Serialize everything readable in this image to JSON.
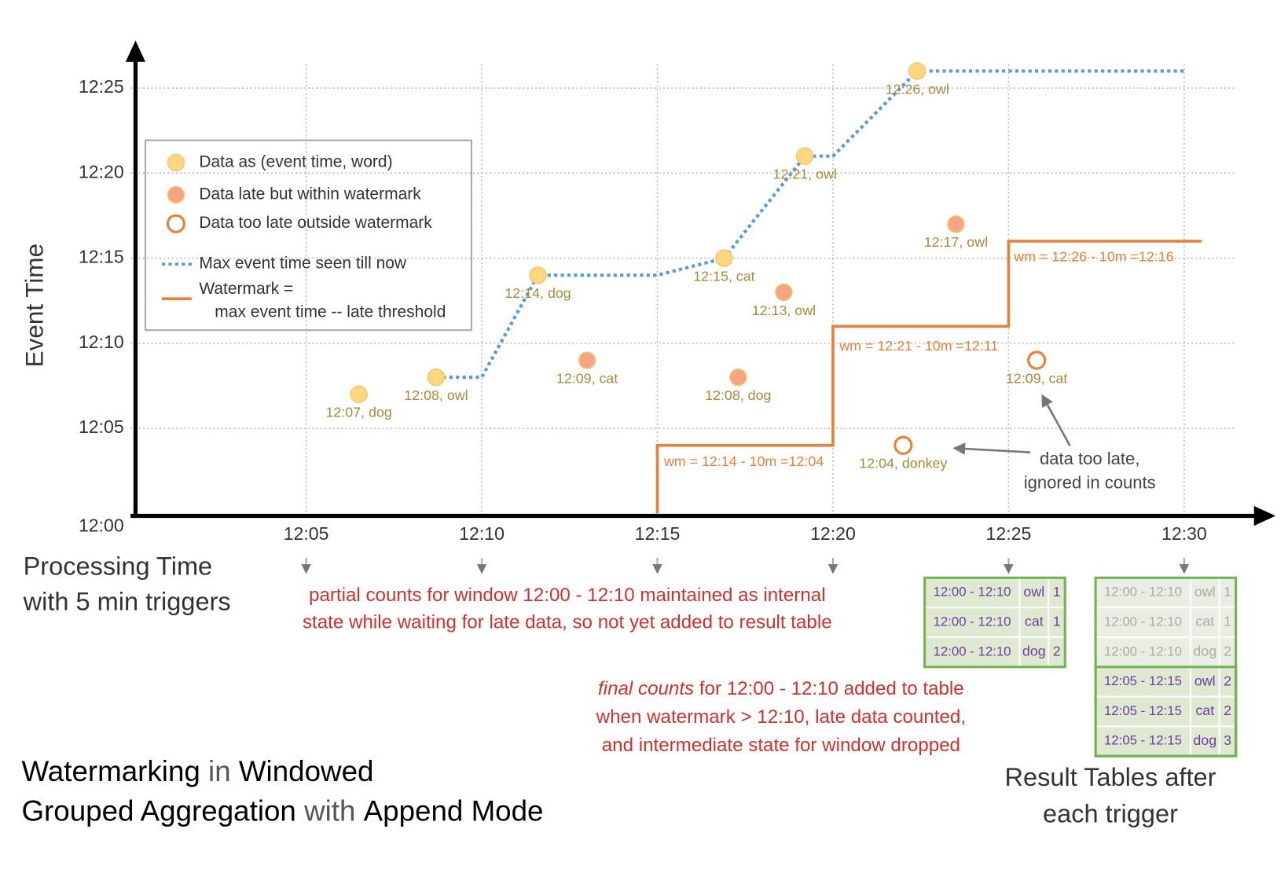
{
  "chart_data": {
    "type": "scatter",
    "x_label": [
      "Processing Time",
      "with 5 min triggers"
    ],
    "y_label": "Event Time",
    "xlim": [
      0,
      32.6
    ],
    "ylim": [
      0,
      27.8
    ],
    "xticks": [
      {
        "value": 5,
        "label": "12:05"
      },
      {
        "value": 10,
        "label": "12:10"
      },
      {
        "value": 15,
        "label": "12:15"
      },
      {
        "value": 20,
        "label": "12:20"
      },
      {
        "value": 25,
        "label": "12:25"
      },
      {
        "value": 30,
        "label": "12:30"
      }
    ],
    "yticks": [
      {
        "value": 0,
        "label": "12:00"
      },
      {
        "value": 5,
        "label": "12:05"
      },
      {
        "value": 10,
        "label": "12:10"
      },
      {
        "value": 15,
        "label": "12:15"
      },
      {
        "value": 20,
        "label": "12:20"
      },
      {
        "value": 25,
        "label": "12:25"
      }
    ],
    "grid": true,
    "series": [
      {
        "name": "Data as (event time, word)",
        "marker": "filled",
        "color": "#fdd77f",
        "x": [
          6.5,
          8.7,
          11.6,
          16.9,
          19.2,
          22.4
        ],
        "values": [
          7,
          8,
          14,
          15,
          21,
          26
        ],
        "value_labels": [
          "12:07, dog",
          "12:08, owl",
          "12:14, dog",
          "12:15, cat",
          "12:21, owl",
          "12:26, owl"
        ]
      },
      {
        "name": "Data late but within watermark",
        "marker": "filled",
        "color": "#f4a582",
        "x": [
          13.0,
          17.3,
          18.6,
          23.5
        ],
        "values": [
          9,
          8,
          13,
          17
        ],
        "value_labels": [
          "12:09, cat",
          "12:08, dog",
          "12:13, owl",
          "12:17, owl"
        ]
      },
      {
        "name": "Data too late outside watermark",
        "marker": "hollow",
        "color": "#e8813b",
        "x": [
          22.0,
          25.8
        ],
        "values": [
          4,
          9
        ],
        "value_labels": [
          "12:04, donkey",
          "12:09, cat"
        ]
      },
      {
        "name": "Max event time seen till now",
        "marker": "dotted-line",
        "color": "#5b9bd5",
        "x": [
          8.7,
          10,
          11.6,
          15,
          16.9,
          19.2,
          20,
          22.4,
          30
        ],
        "values": [
          8,
          8,
          14,
          14,
          15,
          21,
          21,
          26,
          26
        ]
      },
      {
        "name": [
          "Watermark =",
          "max event time -- late threshold"
        ],
        "marker": "line",
        "color": "#e8813b",
        "x": [
          15,
          15,
          20,
          20,
          25,
          25,
          30.5
        ],
        "values": [
          0,
          4,
          4,
          11,
          11,
          16,
          16
        ]
      }
    ],
    "annotations": [
      "wm = 12:14 - 10m =12:04",
      "wm = 12:21 - 10m =12:11",
      "wm = 12:26 - 10m =12:16",
      [
        "data too late,",
        "ignored in counts"
      ]
    ]
  },
  "notes": {
    "partial": [
      "partial counts for window 12:00 - 12:10 maintained as internal",
      "state while waiting for late data, so not yet added  to result table"
    ],
    "final": [
      [
        "final counts",
        " for 12:00 - 12:10 added to table"
      ],
      "when watermark > 12:10, late data counted,",
      "and intermediate state for window dropped"
    ]
  },
  "tables": [
    {
      "rows": [
        [
          "12:00 - 12:10",
          "owl",
          1
        ],
        [
          "12:00 - 12:10",
          "cat",
          1
        ],
        [
          "12:00 - 12:10",
          "dog",
          2
        ]
      ],
      "stale_rows": 0
    },
    {
      "rows": [
        [
          "12:00 - 12:10",
          "owl",
          1
        ],
        [
          "12:00 - 12:10",
          "cat",
          1
        ],
        [
          "12:00 - 12:10",
          "dog",
          2
        ],
        [
          "12:05 - 12:15",
          "owl",
          2
        ],
        [
          "12:05 - 12:15",
          "cat",
          2
        ],
        [
          "12:05 - 12:15",
          "dog",
          3
        ]
      ],
      "stale_rows": 3
    }
  ],
  "tables_caption": [
    "Result Tables after",
    "each trigger"
  ],
  "title": [
    [
      "Watermarking",
      " in ",
      "Windowed"
    ],
    [
      "Grouped Aggregation",
      " with ",
      "Append Mode"
    ]
  ]
}
